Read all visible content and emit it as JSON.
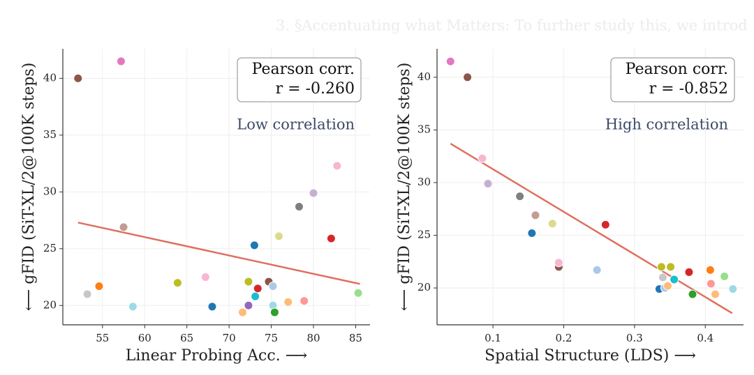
{
  "header": "3. §Accentuating what Matters: To further study this, we introd",
  "chart_data": [
    {
      "type": "scatter",
      "xlabel": "Linear Probing Acc. ⟶",
      "ylabel": "⟵ gFID (SiT-XL/2@100K steps)",
      "annotation": [
        "Pearson corr.",
        "r = -0.260"
      ],
      "note": "Low correlation",
      "xlim": [
        50.3,
        86.7
      ],
      "ylim": [
        18.3,
        42.6
      ],
      "xticks": [
        55,
        60,
        65,
        70,
        75,
        80,
        85
      ],
      "yticks": [
        20,
        25,
        30,
        35,
        40
      ],
      "grid": true,
      "x": [
        52.1,
        57.2,
        57.5,
        53.2,
        54.6,
        58.6,
        63.9,
        67.2,
        68.0,
        71.6,
        72.3,
        72.3,
        73.1,
        73.4,
        73.0,
        74.7,
        75.2,
        75.2,
        75.4,
        75.9,
        77.0,
        78.3,
        78.9,
        80.0,
        82.1,
        82.8,
        85.3
      ],
      "y": [
        40.0,
        41.5,
        26.9,
        21.0,
        21.7,
        19.9,
        22.0,
        22.5,
        19.9,
        19.4,
        20.0,
        22.1,
        20.8,
        21.5,
        25.3,
        22.1,
        21.7,
        20.0,
        19.4,
        26.1,
        20.3,
        28.7,
        20.4,
        29.9,
        25.9,
        32.3,
        21.1
      ],
      "colors": [
        "#8c564b",
        "#e377c2",
        "#c49c94",
        "#c7c7c7",
        "#ff7f0e",
        "#9edae5",
        "#bcbd22",
        "#f7b6d2",
        "#1f77b4",
        "#ffbb78",
        "#9467bd",
        "#bcbd22",
        "#17becf",
        "#d62728",
        "#1f77b4",
        "#8c564b",
        "#aec7e8",
        "#9edae5",
        "#2ca02c",
        "#dbdb8d",
        "#ffbb78",
        "#7f7f7f",
        "#ff9896",
        "#c5b0d5",
        "#d62728",
        "#f7b6d2",
        "#98df8a"
      ],
      "fit": {
        "x": [
          52.1,
          85.5
        ],
        "y": [
          27.3,
          21.9
        ],
        "color": "#e07060"
      }
    },
    {
      "type": "scatter",
      "xlabel": "Spatial Structure (LDS) ⟶",
      "ylabel": "⟵ gFID (SiT-XL/2@100K steps)",
      "annotation": [
        "Pearson corr.",
        "r = -0.852"
      ],
      "note": "High correlation",
      "xlim": [
        0.021,
        0.454
      ],
      "ylim": [
        16.5,
        42.7
      ],
      "xticks": [
        0.1,
        0.2,
        0.3,
        0.4
      ],
      "yticks": [
        20,
        25,
        30,
        35,
        40
      ],
      "grid": true,
      "x": [
        0.04,
        0.064,
        0.085,
        0.093,
        0.138,
        0.16,
        0.155,
        0.184,
        0.259,
        0.193,
        0.193,
        0.247,
        0.338,
        0.351,
        0.34,
        0.335,
        0.343,
        0.347,
        0.356,
        0.377,
        0.382,
        0.407,
        0.408,
        0.414,
        0.427,
        0.439
      ],
      "y": [
        41.5,
        40.0,
        32.3,
        29.9,
        28.7,
        26.9,
        25.2,
        26.1,
        26.0,
        22.0,
        22.4,
        21.7,
        22.0,
        22.0,
        21.0,
        19.9,
        20.0,
        20.2,
        20.8,
        21.5,
        19.4,
        21.7,
        20.4,
        19.4,
        21.1,
        19.9
      ],
      "colors": [
        "#e377c2",
        "#8c564b",
        "#f7b6d2",
        "#c5b0d5",
        "#7f7f7f",
        "#c49c94",
        "#1f77b4",
        "#dbdb8d",
        "#d62728",
        "#8c564b",
        "#f7b6d2",
        "#aec7e8",
        "#bcbd22",
        "#bcbd22",
        "#c7c7c7",
        "#1f77b4",
        "#aec7e8",
        "#ffbb78",
        "#17becf",
        "#d62728",
        "#2ca02c",
        "#ff7f0e",
        "#ff9896",
        "#ffbb78",
        "#98df8a",
        "#9edae5"
      ],
      "fit": {
        "x": [
          0.04,
          0.438
        ],
        "y": [
          33.7,
          17.6
        ],
        "color": "#e07060"
      }
    }
  ]
}
